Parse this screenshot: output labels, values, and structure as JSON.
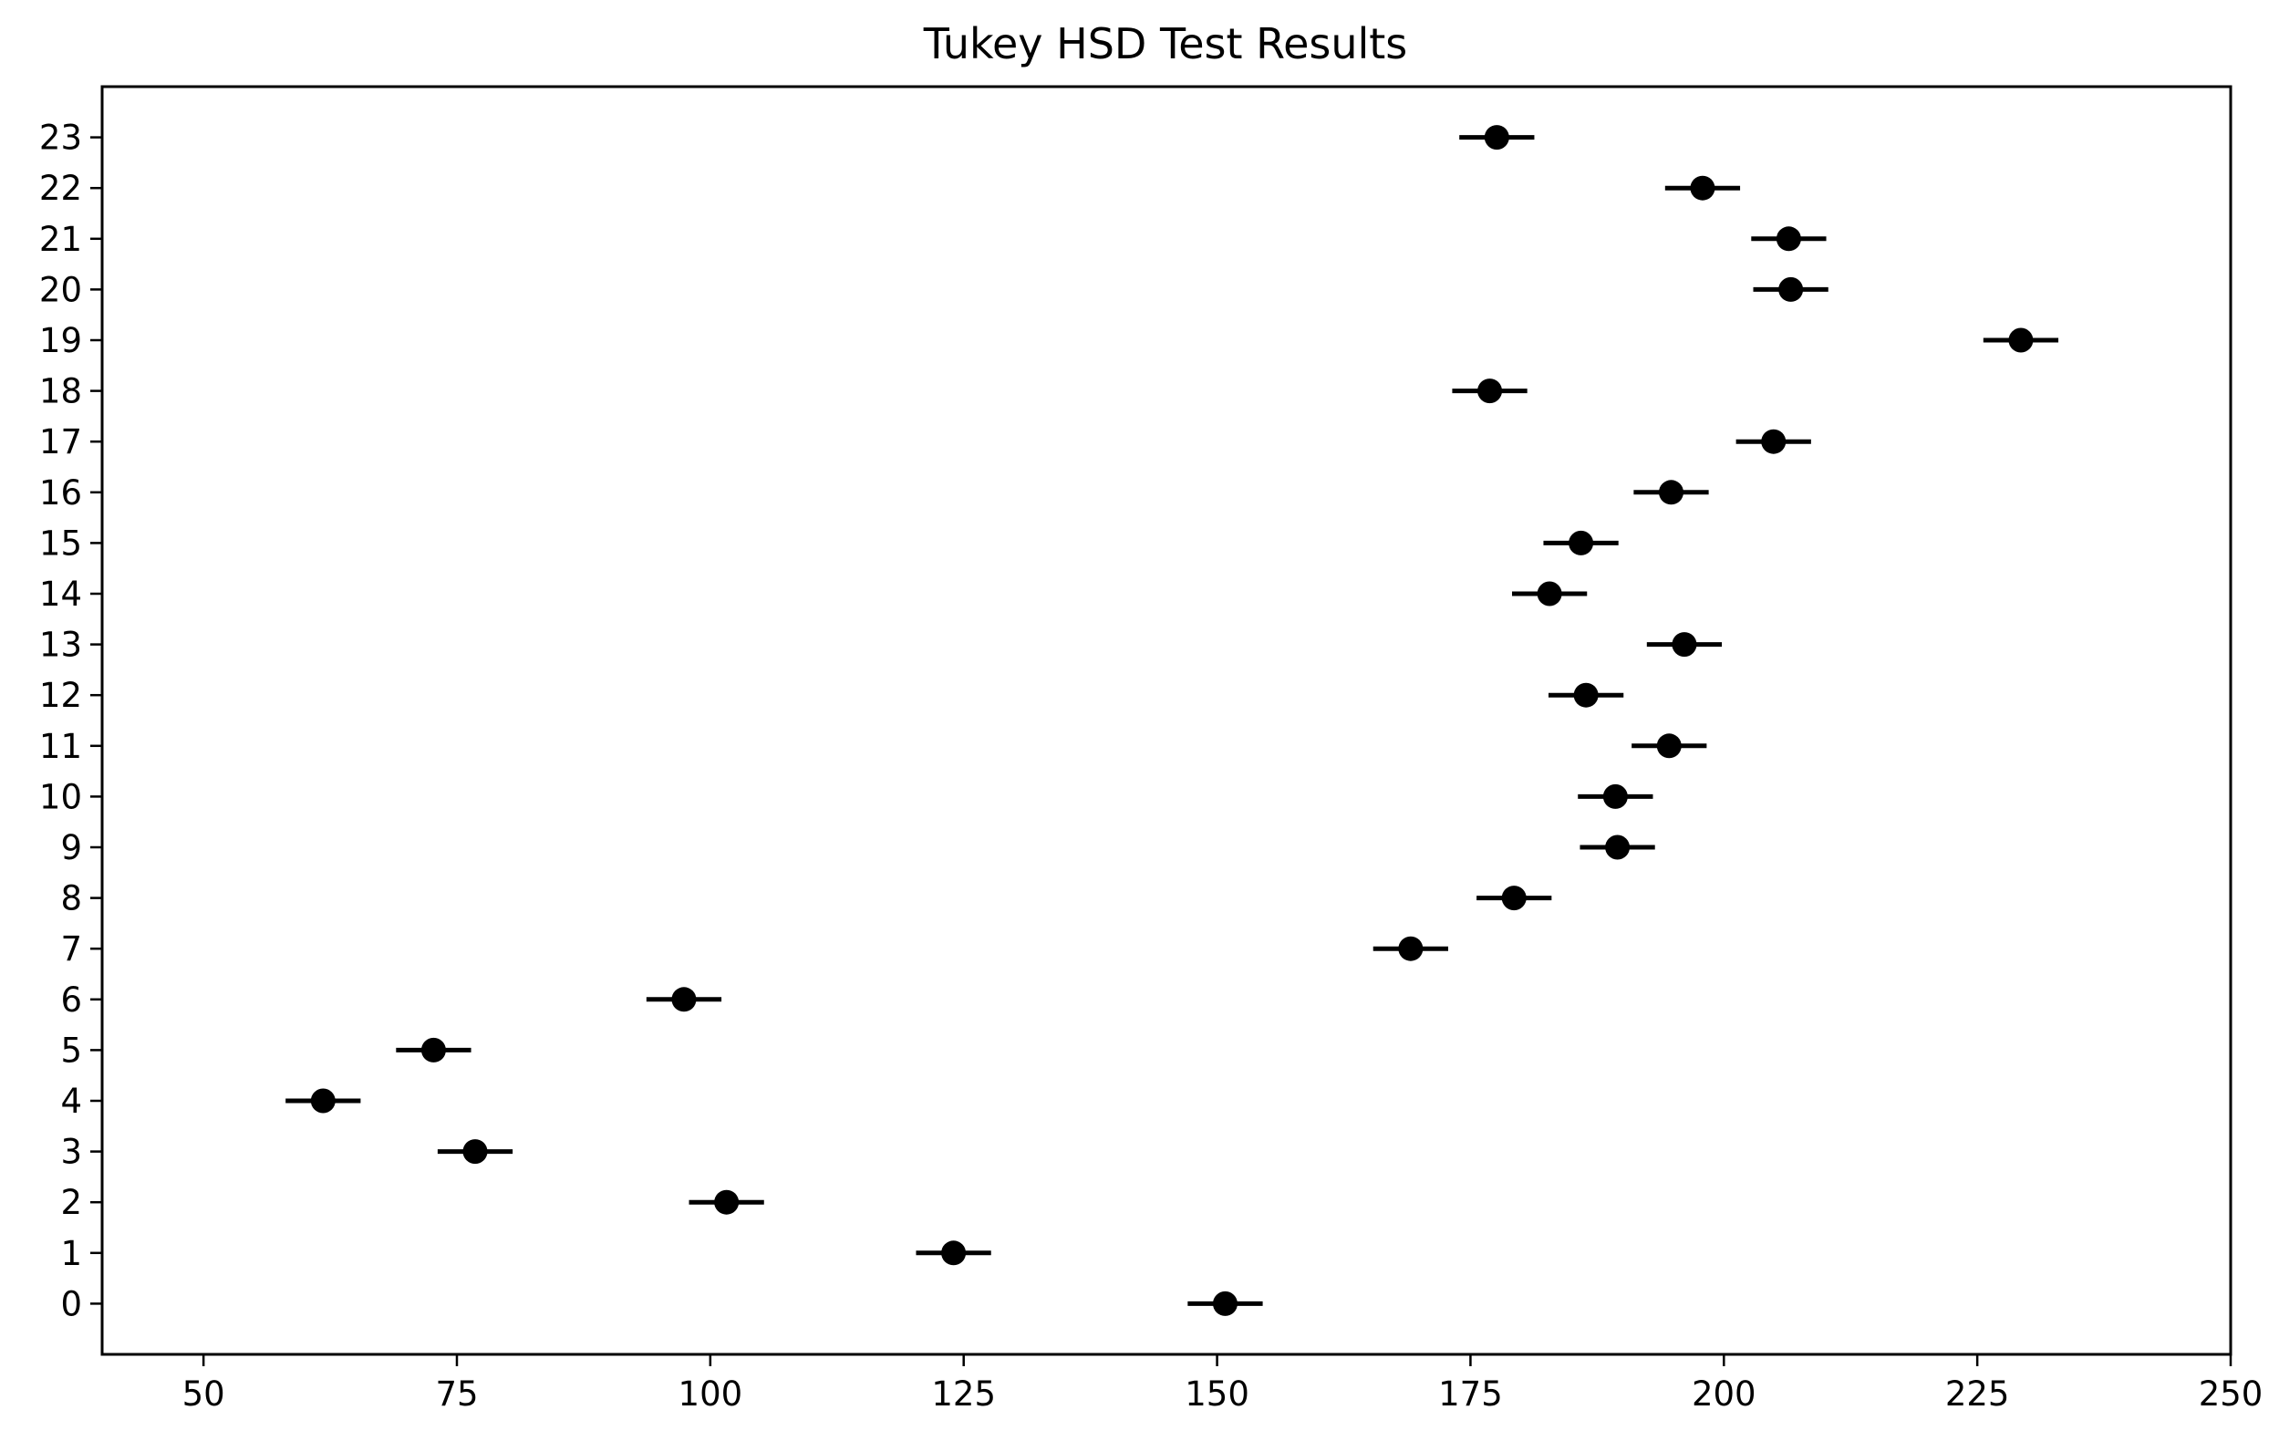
{
  "chart_data": {
    "type": "scatter",
    "title": "Tukey HSD Test Results",
    "xlabel": "",
    "ylabel": "",
    "xlim": [
      40,
      250
    ],
    "ylim": [
      -1,
      24
    ],
    "x_ticks": [
      50,
      75,
      100,
      125,
      150,
      175,
      200,
      225,
      250
    ],
    "y_ticks": [
      0,
      1,
      2,
      3,
      4,
      5,
      6,
      7,
      8,
      9,
      10,
      11,
      12,
      13,
      14,
      15,
      16,
      17,
      18,
      19,
      20,
      21,
      22,
      23
    ],
    "grid": false,
    "marker_color": "#000000",
    "points": [
      {
        "group": 0,
        "mean": 150.8,
        "low": 147.1,
        "high": 154.5
      },
      {
        "group": 1,
        "mean": 124.0,
        "low": 120.3,
        "high": 127.7
      },
      {
        "group": 2,
        "mean": 101.6,
        "low": 97.9,
        "high": 105.3
      },
      {
        "group": 3,
        "mean": 76.8,
        "low": 73.1,
        "high": 80.5
      },
      {
        "group": 4,
        "mean": 61.8,
        "low": 58.1,
        "high": 65.5
      },
      {
        "group": 5,
        "mean": 72.7,
        "low": 69.0,
        "high": 76.4
      },
      {
        "group": 6,
        "mean": 97.4,
        "low": 93.7,
        "high": 101.1
      },
      {
        "group": 7,
        "mean": 169.1,
        "low": 165.4,
        "high": 172.8
      },
      {
        "group": 8,
        "mean": 179.3,
        "low": 175.6,
        "high": 183.0
      },
      {
        "group": 9,
        "mean": 189.5,
        "low": 185.8,
        "high": 193.2
      },
      {
        "group": 10,
        "mean": 189.3,
        "low": 185.6,
        "high": 193.0
      },
      {
        "group": 11,
        "mean": 194.6,
        "low": 190.9,
        "high": 198.3
      },
      {
        "group": 12,
        "mean": 186.4,
        "low": 182.7,
        "high": 190.1
      },
      {
        "group": 13,
        "mean": 196.1,
        "low": 192.4,
        "high": 199.8
      },
      {
        "group": 14,
        "mean": 182.8,
        "low": 179.1,
        "high": 186.5
      },
      {
        "group": 15,
        "mean": 185.9,
        "low": 182.2,
        "high": 189.6
      },
      {
        "group": 16,
        "mean": 194.8,
        "low": 191.1,
        "high": 198.5
      },
      {
        "group": 17,
        "mean": 204.9,
        "low": 201.2,
        "high": 208.6
      },
      {
        "group": 18,
        "mean": 176.9,
        "low": 173.2,
        "high": 180.6
      },
      {
        "group": 19,
        "mean": 229.3,
        "low": 225.6,
        "high": 233.0
      },
      {
        "group": 20,
        "mean": 206.6,
        "low": 202.9,
        "high": 210.3
      },
      {
        "group": 21,
        "mean": 206.4,
        "low": 202.7,
        "high": 210.1
      },
      {
        "group": 22,
        "mean": 197.9,
        "low": 194.2,
        "high": 201.6
      },
      {
        "group": 23,
        "mean": 177.6,
        "low": 173.9,
        "high": 181.3
      }
    ]
  }
}
